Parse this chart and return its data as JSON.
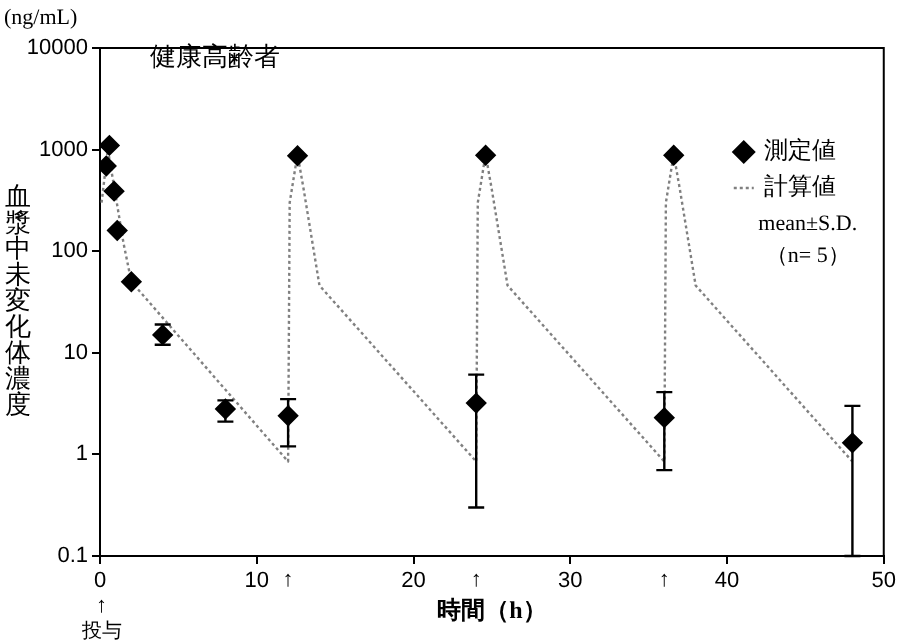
{
  "chart_data": {
    "type": "line",
    "title": "健康高齢者",
    "xlabel": "時間（h）",
    "ylabel": "血漿中未変化体濃度",
    "annotations": [
      "(ng/mL)",
      "mean±S.D.",
      "（n= 5）",
      "↑",
      "投与",
      "↑",
      "↑",
      "↑"
    ],
    "log": "y",
    "xlim": [
      0,
      50
    ],
    "xticks": [
      0,
      10,
      20,
      30,
      40,
      50
    ],
    "ylim": [
      0.1,
      10000
    ],
    "yticks": [
      0.1,
      1,
      10,
      100,
      1000,
      10000
    ],
    "grid": false,
    "legend": "top right",
    "series": [
      {
        "name": "測定値",
        "type": "scatter",
        "color": "#000000",
        "marker": "diamond",
        "x": [
          0.4,
          0.6,
          0.9,
          1.1,
          2,
          4,
          8,
          12,
          12.6,
          24,
          24.6,
          36,
          36.6,
          48
        ],
        "values": [
          690,
          1100,
          390,
          160,
          50,
          15,
          2.8,
          2.4,
          870,
          3.2,
          880,
          2.3,
          880,
          1.3
        ],
        "errors": [
          null,
          null,
          null,
          null,
          null,
          [
            12,
            19
          ],
          [
            2.1,
            3.4
          ],
          [
            1.2,
            3.5
          ],
          null,
          [
            0.3,
            6.1
          ],
          null,
          [
            0.7,
            4.1
          ],
          null,
          [
            0.1,
            3
          ]
        ]
      },
      {
        "name": "計算値",
        "type": "line",
        "color": "#808080",
        "marker": "none",
        "line_style": "dotted",
        "x": [
          0.1,
          0.5,
          1,
          1.5,
          2,
          12,
          12.1,
          12.6,
          13,
          14,
          24,
          24.1,
          24.6,
          25,
          26,
          36,
          36.1,
          36.6,
          37,
          38,
          48
        ],
        "values": [
          300,
          1000,
          350,
          120,
          50,
          0.85,
          300,
          900,
          400,
          46,
          0.85,
          300,
          900,
          400,
          46,
          0.85,
          300,
          900,
          400,
          46,
          0.85
        ]
      }
    ]
  }
}
